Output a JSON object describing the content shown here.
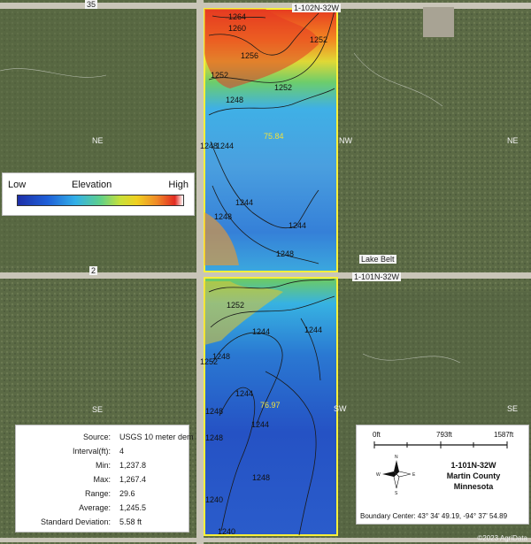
{
  "legend": {
    "low": "Low",
    "title": "Elevation",
    "high": "High"
  },
  "stats": [
    {
      "label": "Source:",
      "value": "USGS 10 meter dem"
    },
    {
      "label": "Interval(ft):",
      "value": "4"
    },
    {
      "label": "Min:",
      "value": "1,237.8"
    },
    {
      "label": "Max:",
      "value": "1,267.4"
    },
    {
      "label": "Range:",
      "value": "29.6"
    },
    {
      "label": "Average:",
      "value": "1,245.5"
    },
    {
      "label": "Standard Deviation:",
      "value": "5.58 ft"
    }
  ],
  "scale": {
    "ticks": [
      "0ft",
      "793ft",
      "1587ft"
    ]
  },
  "location": {
    "parcel": "1-101N-32W",
    "county": "Martin County",
    "state": "Minnesota",
    "boundary_center": "Boundary Center: 43° 34' 49.19, -94° 37' 54.89"
  },
  "acres": {
    "north": "75.84",
    "south": "76.97"
  },
  "sections": {
    "ne_left": "NE",
    "nw": "NW",
    "ne_right": "NE",
    "se_left": "SE",
    "sw": "SW",
    "se_right": "SE"
  },
  "roads": {
    "top_label": "35",
    "left_label": "2",
    "lake_belt": "Lake Belt",
    "section_label": "1-101N-32W",
    "top_section": "1-102N-32W"
  },
  "contours": [
    "1264",
    "1260",
    "1256",
    "1252",
    "1252",
    "1252",
    "1248",
    "1248",
    "1244",
    "1244",
    "1248",
    "1244",
    "1248",
    "1252",
    "1248",
    "1244",
    "1244",
    "1252",
    "1248",
    "1244",
    "1244",
    "1248",
    "1248",
    "1240",
    "1240"
  ],
  "copyright": "©2023 AgriData"
}
